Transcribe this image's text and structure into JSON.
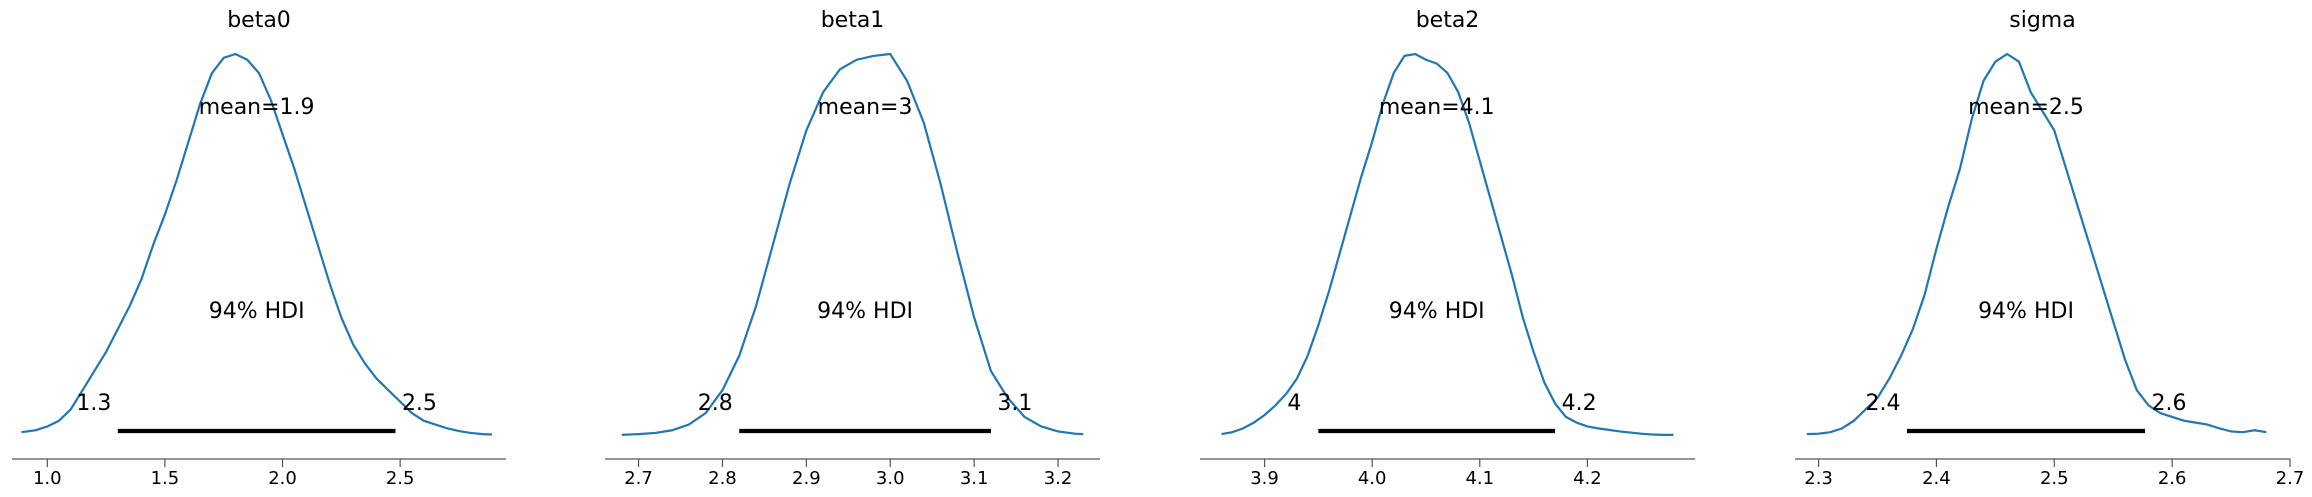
{
  "chart_data": [
    {
      "type": "line",
      "title": "beta0",
      "mean_text": "mean=1.9",
      "hdi_text": "94% HDI",
      "hdi_low_text": "1.3",
      "hdi_high_text": "2.5",
      "hdi": [
        1.3,
        2.48
      ],
      "xlim": [
        0.85,
        2.95
      ],
      "xticks": [
        1.0,
        1.5,
        2.0,
        2.5
      ],
      "xtick_labels": [
        "1.0",
        "1.5",
        "2.0",
        "2.5"
      ],
      "density": {
        "x": [
          0.89,
          0.95,
          1.0,
          1.05,
          1.1,
          1.15,
          1.2,
          1.25,
          1.3,
          1.35,
          1.4,
          1.45,
          1.5,
          1.55,
          1.6,
          1.65,
          1.7,
          1.75,
          1.8,
          1.85,
          1.9,
          1.95,
          2.0,
          2.05,
          2.1,
          2.15,
          2.2,
          2.25,
          2.3,
          2.35,
          2.4,
          2.45,
          2.5,
          2.55,
          2.6,
          2.65,
          2.7,
          2.75,
          2.8,
          2.85,
          2.89
        ],
        "y": [
          0.01,
          0.015,
          0.025,
          0.04,
          0.07,
          0.12,
          0.17,
          0.22,
          0.28,
          0.34,
          0.41,
          0.5,
          0.58,
          0.67,
          0.77,
          0.87,
          0.95,
          0.99,
          1.0,
          0.985,
          0.95,
          0.88,
          0.79,
          0.7,
          0.6,
          0.5,
          0.4,
          0.31,
          0.24,
          0.19,
          0.15,
          0.12,
          0.09,
          0.06,
          0.04,
          0.03,
          0.02,
          0.013,
          0.008,
          0.005,
          0.004
        ]
      }
    },
    {
      "type": "line",
      "title": "beta1",
      "mean_text": "mean=3",
      "hdi_text": "94% HDI",
      "hdi_low_text": "2.8",
      "hdi_high_text": "3.1",
      "hdi": [
        2.82,
        3.12
      ],
      "xlim": [
        2.66,
        3.25
      ],
      "xticks": [
        2.7,
        2.8,
        2.9,
        3.0,
        3.1,
        3.2
      ],
      "xtick_labels": [
        "2.7",
        "2.8",
        "2.9",
        "3.0",
        "3.1",
        "3.2"
      ],
      "density": {
        "x": [
          2.68,
          2.7,
          2.72,
          2.74,
          2.76,
          2.78,
          2.8,
          2.82,
          2.84,
          2.86,
          2.88,
          2.9,
          2.92,
          2.94,
          2.96,
          2.98,
          3.0,
          3.02,
          3.04,
          3.06,
          3.08,
          3.1,
          3.12,
          3.14,
          3.16,
          3.18,
          3.2,
          3.22,
          3.23
        ],
        "y": [
          0.003,
          0.005,
          0.008,
          0.015,
          0.03,
          0.06,
          0.12,
          0.21,
          0.34,
          0.5,
          0.66,
          0.8,
          0.9,
          0.96,
          0.985,
          0.995,
          1.0,
          0.93,
          0.82,
          0.66,
          0.48,
          0.31,
          0.17,
          0.1,
          0.05,
          0.025,
          0.012,
          0.006,
          0.005
        ]
      }
    },
    {
      "type": "line",
      "title": "beta2",
      "mean_text": "mean=4.1",
      "hdi_text": "94% HDI",
      "hdi_low_text": "4",
      "hdi_high_text": "4.2",
      "hdi": [
        3.95,
        4.17
      ],
      "xlim": [
        3.84,
        4.3
      ],
      "xticks": [
        3.9,
        4.0,
        4.1,
        4.2
      ],
      "xtick_labels": [
        "3.9",
        "4.0",
        "4.1",
        "4.2"
      ],
      "density": {
        "x": [
          3.86,
          3.87,
          3.88,
          3.89,
          3.9,
          3.91,
          3.92,
          3.93,
          3.94,
          3.95,
          3.96,
          3.97,
          3.98,
          3.99,
          4.0,
          4.01,
          4.02,
          4.03,
          4.04,
          4.05,
          4.06,
          4.07,
          4.08,
          4.09,
          4.1,
          4.11,
          4.12,
          4.13,
          4.14,
          4.15,
          4.16,
          4.17,
          4.18,
          4.19,
          4.2,
          4.21,
          4.22,
          4.23,
          4.24,
          4.25,
          4.26,
          4.27,
          4.28
        ],
        "y": [
          0.005,
          0.01,
          0.02,
          0.035,
          0.055,
          0.08,
          0.11,
          0.15,
          0.21,
          0.29,
          0.38,
          0.48,
          0.58,
          0.68,
          0.77,
          0.87,
          0.95,
          0.995,
          1.0,
          0.985,
          0.975,
          0.95,
          0.9,
          0.82,
          0.72,
          0.62,
          0.52,
          0.42,
          0.31,
          0.22,
          0.14,
          0.085,
          0.05,
          0.035,
          0.025,
          0.02,
          0.016,
          0.012,
          0.009,
          0.006,
          0.004,
          0.003,
          0.003
        ]
      }
    },
    {
      "type": "line",
      "title": "sigma",
      "mean_text": "mean=2.5",
      "hdi_text": "94% HDI",
      "hdi_low_text": "2.4",
      "hdi_high_text": "2.6",
      "hdi": [
        2.375,
        2.577
      ],
      "xlim": [
        2.28,
        2.7
      ],
      "xticks": [
        2.3,
        2.4,
        2.5,
        2.6,
        2.7
      ],
      "xtick_labels": [
        "2.3",
        "2.4",
        "2.5",
        "2.6",
        "2.7"
      ],
      "density": {
        "x": [
          2.29,
          2.3,
          2.31,
          2.32,
          2.33,
          2.34,
          2.35,
          2.36,
          2.37,
          2.38,
          2.39,
          2.4,
          2.41,
          2.42,
          2.43,
          2.44,
          2.45,
          2.46,
          2.47,
          2.48,
          2.49,
          2.5,
          2.51,
          2.52,
          2.53,
          2.54,
          2.55,
          2.56,
          2.57,
          2.58,
          2.59,
          2.6,
          2.61,
          2.62,
          2.63,
          2.64,
          2.65,
          2.66,
          2.67,
          2.68
        ],
        "y": [
          0.005,
          0.006,
          0.01,
          0.02,
          0.04,
          0.07,
          0.1,
          0.15,
          0.21,
          0.28,
          0.37,
          0.49,
          0.6,
          0.7,
          0.83,
          0.93,
          0.98,
          1.0,
          0.98,
          0.9,
          0.85,
          0.8,
          0.7,
          0.6,
          0.5,
          0.4,
          0.3,
          0.2,
          0.12,
          0.08,
          0.06,
          0.05,
          0.04,
          0.035,
          0.03,
          0.02,
          0.012,
          0.01,
          0.015,
          0.01
        ]
      }
    }
  ],
  "colors": {
    "kde": "#1f77b4",
    "hdi_bar": "#000000",
    "axis": "#555555",
    "text": "#000000"
  }
}
